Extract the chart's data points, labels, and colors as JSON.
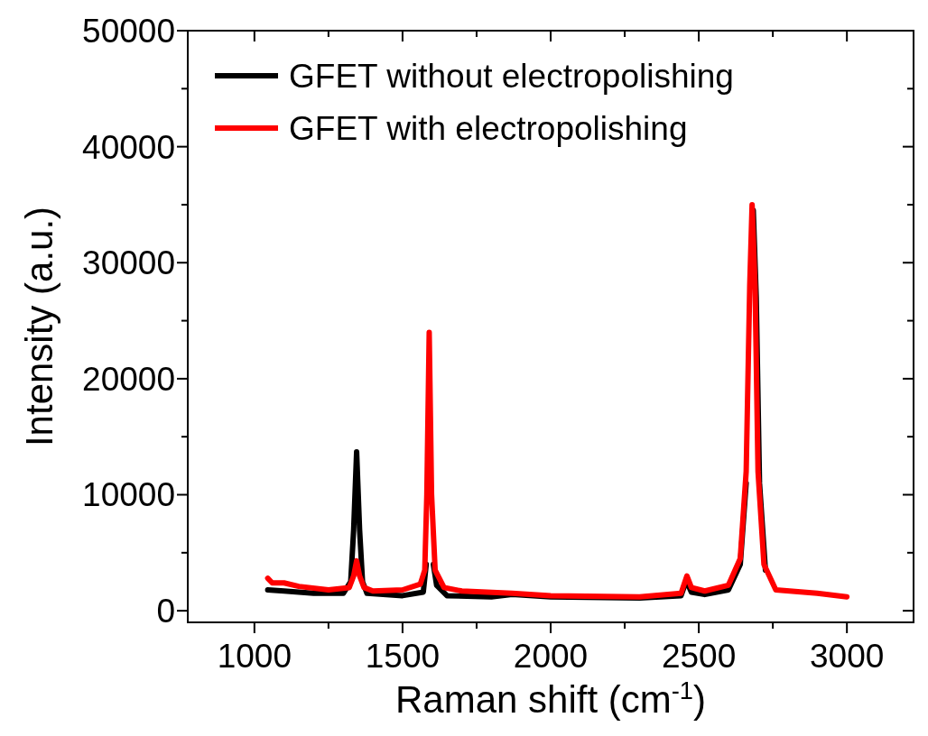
{
  "chart_data": {
    "type": "line",
    "xlabel": "Raman shift (cm$^{-1}$)",
    "ylabel": "Intensity (a.u.)",
    "xlim": [
      775,
      3225
    ],
    "ylim": [
      -1000,
      50000
    ],
    "xticks": [
      1000,
      {
        "value": 1250,
        "label": null
      },
      1500,
      {
        "value": 1750,
        "label": null
      },
      2000,
      {
        "value": 2250,
        "label": null
      },
      2500,
      {
        "value": 2750,
        "label": null
      },
      3000
    ],
    "yticks": [
      0,
      {
        "value": 5000,
        "label": null
      },
      10000,
      {
        "value": 15000,
        "label": null
      },
      20000,
      {
        "value": 25000,
        "label": null
      },
      30000,
      {
        "value": 35000,
        "label": null
      },
      40000,
      {
        "value": 45000,
        "label": null
      },
      50000
    ],
    "grid": false,
    "legend": "top left",
    "marker": "none",
    "line_style": "solid",
    "series": [
      {
        "name": "GFET without electropolishing",
        "color": "#000000",
        "x": [
          1045,
          1100,
          1200,
          1300,
          1325,
          1335,
          1345,
          1355,
          1365,
          1380,
          1500,
          1570,
          1580,
          1586,
          1592,
          1598,
          1604,
          1615,
          1650,
          1800,
          1870,
          2000,
          2300,
          2440,
          2458,
          2475,
          2520,
          2600,
          2640,
          2660,
          2672,
          2684,
          2694,
          2705,
          2725
        ],
        "values": [
          1800,
          1700,
          1500,
          1500,
          2500,
          7000,
          13700,
          7000,
          2500,
          1500,
          1300,
          1600,
          4000,
          null,
          null,
          null,
          4000,
          2200,
          1300,
          1200,
          1400,
          1200,
          1100,
          1300,
          2600,
          1600,
          1400,
          1800,
          4000,
          11000,
          null,
          34500,
          27000,
          11000,
          3500
        ]
      },
      {
        "name": "GFET with electropolishing",
        "color": "#ff0000",
        "x": [
          1045,
          1060,
          1100,
          1150,
          1250,
          1320,
          1335,
          1345,
          1355,
          1370,
          1400,
          1500,
          1560,
          1575,
          1582,
          1590,
          1598,
          1610,
          1640,
          1700,
          1870,
          2000,
          2300,
          2440,
          2460,
          2475,
          2520,
          2600,
          2640,
          2660,
          2672,
          2680,
          2690,
          2700,
          2720,
          2760,
          2900,
          3000
        ],
        "values": [
          2800,
          2400,
          2400,
          2100,
          1800,
          2000,
          3000,
          4300,
          3000,
          2000,
          1700,
          1800,
          2300,
          3500,
          10000,
          24000,
          10000,
          3500,
          2000,
          1700,
          1500,
          1300,
          1200,
          1500,
          3000,
          2000,
          1700,
          2200,
          4500,
          12000,
          28000,
          35000,
          28000,
          12000,
          4000,
          1800,
          1500,
          1200
        ]
      }
    ]
  }
}
